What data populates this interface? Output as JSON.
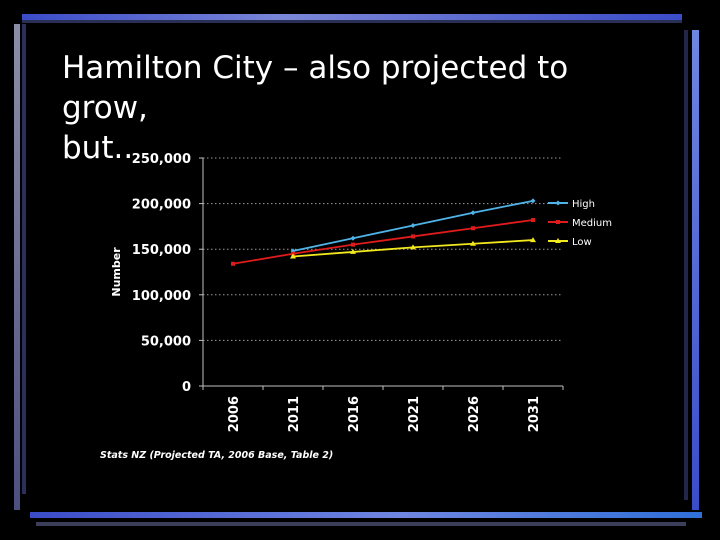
{
  "slide": {
    "title": "Hamilton City – also projected to grow,\nbut..",
    "source": "Stats NZ (Projected TA, 2006 Base, Table 2)",
    "colors": {
      "background": "#000000",
      "frame_blue": "#3b4cc8",
      "frame_grey": "#8a8fa8",
      "frame_light": "#6f86e0"
    }
  },
  "chart_data": {
    "type": "line",
    "x": [
      "2006",
      "2011",
      "2016",
      "2021",
      "2026",
      "2031"
    ],
    "ylabel": "Number",
    "xlabel": "",
    "ylim": [
      0,
      250000
    ],
    "yticks": [
      0,
      50000,
      100000,
      150000,
      200000,
      250000
    ],
    "ytick_labels": [
      "0",
      "50,000",
      "100,000",
      "150,000",
      "200,000",
      "250,000"
    ],
    "grid": "horizontal dotted",
    "legend_position": "right",
    "series": [
      {
        "name": "High",
        "color": "#4fb3e8",
        "marker": "diamond",
        "values": [
          null,
          148000,
          162000,
          176000,
          190000,
          203000
        ]
      },
      {
        "name": "Medium",
        "color": "#e01b1b",
        "marker": "square",
        "values": [
          134000,
          145000,
          155000,
          164000,
          173000,
          182000
        ]
      },
      {
        "name": "Low",
        "color": "#f2e81e",
        "marker": "triangle",
        "values": [
          null,
          142000,
          147000,
          152000,
          156000,
          160000
        ]
      }
    ]
  }
}
